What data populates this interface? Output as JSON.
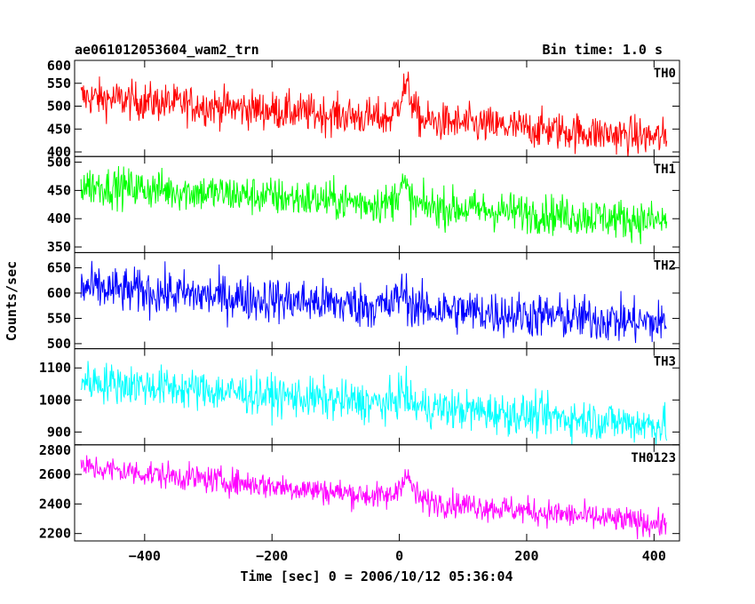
{
  "chart_data": {
    "type": "line",
    "title": "ae061012053604_wam2_trn",
    "subtitle": "Bin time: 1.0 s",
    "xlabel": "Time [sec] 0 = 2006/10/12 05:36:04",
    "ylabel": "Counts/sec",
    "xlim": [
      -510,
      440
    ],
    "x_ticks": [
      -400,
      -200,
      0,
      200,
      400
    ],
    "x_range": [
      -500,
      420
    ],
    "panels": [
      {
        "name": "TH0",
        "color": "#ff0000",
        "ylim": [
          390,
          600
        ],
        "y_ticks": [
          400,
          450,
          500,
          550,
          600
        ],
        "level_start": 520,
        "level_end": 430,
        "noise": 30,
        "peak": {
          "x": 10,
          "height": 70,
          "width": 14
        }
      },
      {
        "name": "TH1",
        "color": "#00ff00",
        "ylim": [
          340,
          510
        ],
        "y_ticks": [
          350,
          400,
          450,
          500
        ],
        "level_start": 460,
        "level_end": 395,
        "noise": 25,
        "peak": {
          "x": 5,
          "height": 35,
          "width": 12
        }
      },
      {
        "name": "TH2",
        "color": "#0000ff",
        "ylim": [
          490,
          680
        ],
        "y_ticks": [
          500,
          550,
          600,
          650
        ],
        "level_start": 610,
        "level_end": 540,
        "noise": 32,
        "peak": {
          "x": 5,
          "height": 30,
          "width": 12
        }
      },
      {
        "name": "TH3",
        "color": "#00ffff",
        "ylim": [
          860,
          1160
        ],
        "y_ticks": [
          900,
          1000,
          1100
        ],
        "level_start": 1060,
        "level_end": 920,
        "noise": 45,
        "peak": {
          "x": 5,
          "height": 40,
          "width": 12
        }
      },
      {
        "name": "TH0123",
        "color": "#ff00ff",
        "ylim": [
          2150,
          2800
        ],
        "y_ticks": [
          2200,
          2400,
          2600,
          2800
        ],
        "level_start": 2650,
        "level_end": 2260,
        "noise": 65,
        "peak": {
          "x": 10,
          "height": 150,
          "width": 14
        }
      }
    ]
  }
}
